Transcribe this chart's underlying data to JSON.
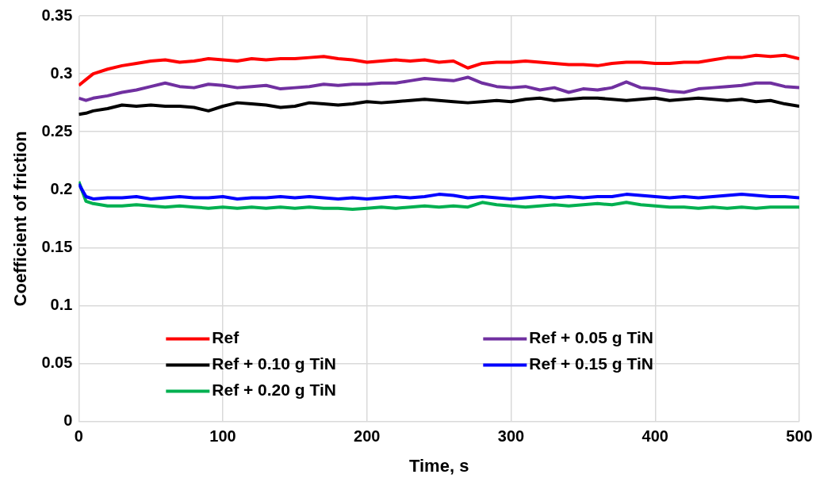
{
  "chart_data": {
    "type": "line",
    "xlabel": "Time, s",
    "ylabel": "Coefficient of friction",
    "xlim": [
      0,
      500
    ],
    "xticks": [
      0,
      100,
      200,
      300,
      400,
      500
    ],
    "ylim": [
      0,
      0.35
    ],
    "yticks": [
      0,
      0.05,
      0.1,
      0.15,
      0.2,
      0.25,
      0.3,
      0.35
    ],
    "grid": true,
    "legend": "bottom",
    "marker": "none",
    "line_style": "solid",
    "x": [
      0,
      5,
      10,
      20,
      30,
      40,
      50,
      60,
      70,
      80,
      90,
      100,
      110,
      120,
      130,
      140,
      150,
      160,
      170,
      180,
      190,
      200,
      210,
      220,
      230,
      240,
      250,
      260,
      270,
      280,
      290,
      300,
      310,
      320,
      330,
      340,
      350,
      360,
      370,
      380,
      390,
      400,
      410,
      420,
      430,
      440,
      450,
      460,
      470,
      480,
      490,
      500
    ],
    "series": [
      {
        "name": "Ref",
        "color": "#ff0000",
        "values": [
          0.29,
          0.295,
          0.3,
          0.304,
          0.307,
          0.309,
          0.311,
          0.312,
          0.31,
          0.311,
          0.313,
          0.312,
          0.311,
          0.313,
          0.312,
          0.313,
          0.313,
          0.314,
          0.315,
          0.313,
          0.312,
          0.31,
          0.311,
          0.312,
          0.311,
          0.312,
          0.31,
          0.311,
          0.305,
          0.309,
          0.31,
          0.31,
          0.311,
          0.31,
          0.309,
          0.308,
          0.308,
          0.307,
          0.309,
          0.31,
          0.31,
          0.309,
          0.309,
          0.31,
          0.31,
          0.312,
          0.314,
          0.314,
          0.316,
          0.315,
          0.316,
          0.313
        ]
      },
      {
        "name": "Ref + 0.05 g TiN",
        "color": "#7030a0",
        "values": [
          0.279,
          0.277,
          0.279,
          0.281,
          0.284,
          0.286,
          0.289,
          0.292,
          0.289,
          0.288,
          0.291,
          0.29,
          0.288,
          0.289,
          0.29,
          0.287,
          0.288,
          0.289,
          0.291,
          0.29,
          0.291,
          0.291,
          0.292,
          0.292,
          0.294,
          0.296,
          0.295,
          0.294,
          0.297,
          0.292,
          0.289,
          0.288,
          0.289,
          0.286,
          0.288,
          0.284,
          0.287,
          0.286,
          0.288,
          0.293,
          0.288,
          0.287,
          0.285,
          0.284,
          0.287,
          0.288,
          0.289,
          0.29,
          0.292,
          0.292,
          0.289,
          0.288
        ]
      },
      {
        "name": "Ref + 0.10 g TiN",
        "color": "#000000",
        "values": [
          0.265,
          0.266,
          0.268,
          0.27,
          0.273,
          0.272,
          0.273,
          0.272,
          0.272,
          0.271,
          0.268,
          0.272,
          0.275,
          0.274,
          0.273,
          0.271,
          0.272,
          0.275,
          0.274,
          0.273,
          0.274,
          0.276,
          0.275,
          0.276,
          0.277,
          0.278,
          0.277,
          0.276,
          0.275,
          0.276,
          0.277,
          0.276,
          0.278,
          0.279,
          0.277,
          0.278,
          0.279,
          0.279,
          0.278,
          0.277,
          0.278,
          0.279,
          0.277,
          0.278,
          0.279,
          0.278,
          0.277,
          0.278,
          0.276,
          0.277,
          0.274,
          0.272
        ]
      },
      {
        "name": "Ref + 0.15 g TiN",
        "color": "#0000ff",
        "values": [
          0.205,
          0.194,
          0.192,
          0.193,
          0.193,
          0.194,
          0.192,
          0.193,
          0.194,
          0.193,
          0.193,
          0.194,
          0.192,
          0.193,
          0.193,
          0.194,
          0.193,
          0.194,
          0.193,
          0.192,
          0.193,
          0.192,
          0.193,
          0.194,
          0.193,
          0.194,
          0.196,
          0.195,
          0.193,
          0.194,
          0.193,
          0.192,
          0.193,
          0.194,
          0.193,
          0.194,
          0.193,
          0.194,
          0.194,
          0.196,
          0.195,
          0.194,
          0.193,
          0.194,
          0.193,
          0.194,
          0.195,
          0.196,
          0.195,
          0.194,
          0.194,
          0.193
        ]
      },
      {
        "name": "Ref + 0.20 g TiN",
        "color": "#00b050",
        "values": [
          0.207,
          0.19,
          0.188,
          0.186,
          0.186,
          0.187,
          0.186,
          0.185,
          0.186,
          0.185,
          0.184,
          0.185,
          0.184,
          0.185,
          0.184,
          0.185,
          0.184,
          0.185,
          0.184,
          0.184,
          0.183,
          0.184,
          0.185,
          0.184,
          0.185,
          0.186,
          0.185,
          0.186,
          0.185,
          0.189,
          0.187,
          0.186,
          0.185,
          0.186,
          0.187,
          0.186,
          0.187,
          0.188,
          0.187,
          0.189,
          0.187,
          0.186,
          0.185,
          0.185,
          0.184,
          0.185,
          0.184,
          0.185,
          0.184,
          0.185,
          0.185,
          0.185
        ]
      }
    ]
  }
}
